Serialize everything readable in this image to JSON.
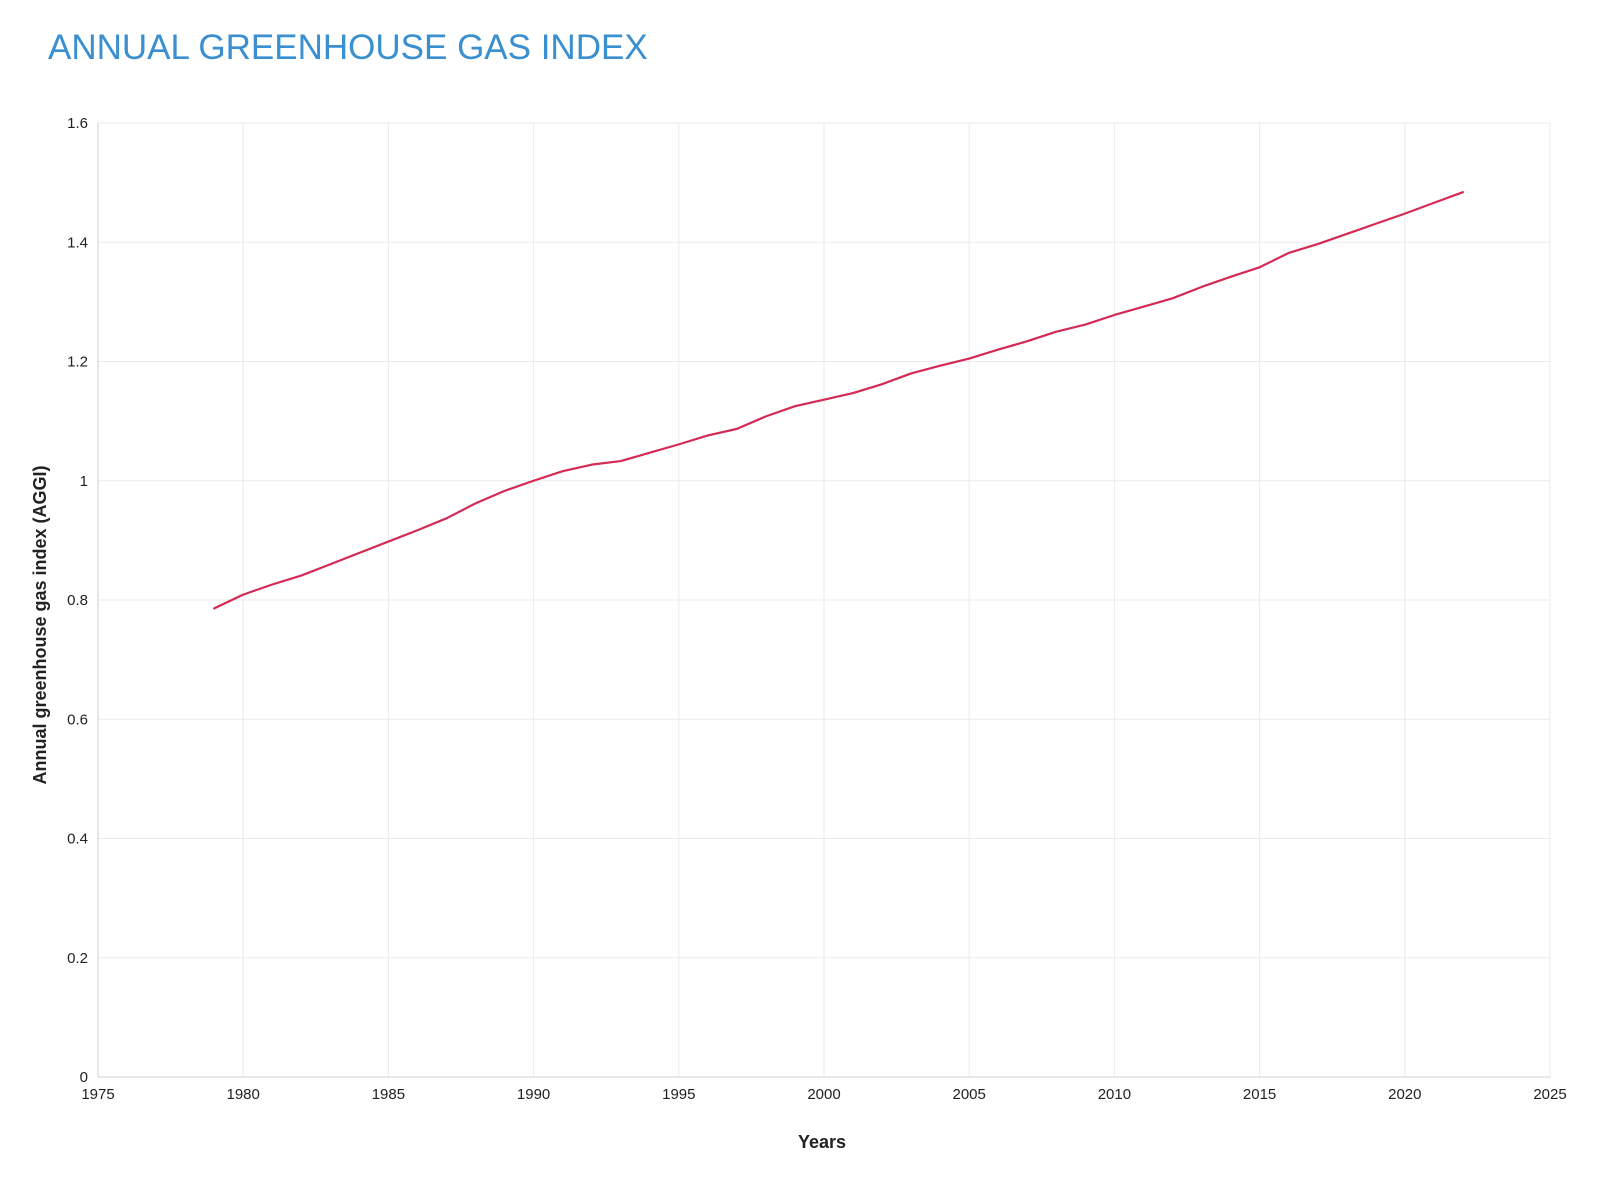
{
  "chart_data": {
    "type": "line",
    "title": "ANNUAL GREENHOUSE GAS INDEX",
    "xlabel": "Years",
    "ylabel": "Annual greenhouse gas index (AGGI)",
    "xlim": [
      1975,
      2025
    ],
    "ylim": [
      0,
      1.6
    ],
    "xticks": [
      "1975",
      "1980",
      "1985",
      "1990",
      "1995",
      "2000",
      "2005",
      "2010",
      "2015",
      "2020",
      "2025"
    ],
    "yticks": [
      "0",
      "0.2",
      "0.4",
      "0.6",
      "0.8",
      "1",
      "1.2",
      "1.4",
      "1.6"
    ],
    "grid": true,
    "series": [
      {
        "color": "#d42a55",
        "x": [
          1979,
          1980,
          1981,
          1982,
          1983,
          1984,
          1985,
          1986,
          1987,
          1988,
          1989,
          1990,
          1991,
          1992,
          1993,
          1994,
          1995,
          1996,
          1997,
          1998,
          1999,
          2000,
          2001,
          2002,
          2003,
          2004,
          2005,
          2006,
          2007,
          2008,
          2009,
          2010,
          2011,
          2012,
          2013,
          2014,
          2015,
          2016,
          2017,
          2018,
          2019,
          2020,
          2021,
          2022
        ],
        "y": [
          0.786,
          0.809,
          0.826,
          0.841,
          0.86,
          0.879,
          0.898,
          0.917,
          0.937,
          0.962,
          0.983,
          1.0,
          1.016,
          1.027,
          1.033,
          1.047,
          1.061,
          1.076,
          1.087,
          1.108,
          1.125,
          1.136,
          1.147,
          1.162,
          1.18,
          1.193,
          1.205,
          1.22,
          1.234,
          1.25,
          1.262,
          1.278,
          1.292,
          1.306,
          1.325,
          1.342,
          1.358,
          1.382,
          1.397,
          1.414,
          1.431,
          1.448,
          1.466,
          1.484
        ]
      }
    ]
  }
}
